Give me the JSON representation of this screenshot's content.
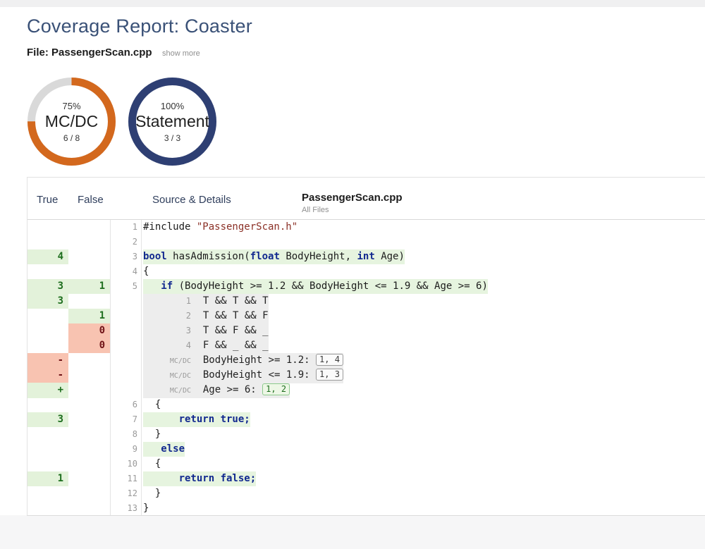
{
  "page": {
    "title": "Coverage Report: Coaster",
    "file_label": "File: PassengerScan.cpp",
    "show_more": "show more"
  },
  "metrics": [
    {
      "percent": 75,
      "percent_label": "75%",
      "name": "MC/DC",
      "fraction": "6 / 8",
      "color": "#d3681d",
      "track": "#d9d9d9"
    },
    {
      "percent": 100,
      "percent_label": "100%",
      "name": "Statement",
      "fraction": "3 / 3",
      "color": "#2e3f73",
      "track": "#d9d9d9"
    }
  ],
  "table": {
    "headers": {
      "true_col": "True",
      "false_col": "False",
      "source_col": "Source & Details",
      "file": "PassengerScan.cpp",
      "file_sub": "All Files"
    },
    "rows": [
      {
        "kind": "code",
        "line": "1",
        "segs": [
          {
            "t": "#include "
          },
          {
            "t": "\"PassengerScan.h\"",
            "c": "str"
          }
        ]
      },
      {
        "kind": "code",
        "line": "2",
        "segs": []
      },
      {
        "kind": "code",
        "line": "3",
        "t": {
          "v": "4",
          "bg": "good"
        },
        "hl": true,
        "segs": [
          {
            "t": "bool",
            "c": "kw"
          },
          {
            "t": " hasAdmission("
          },
          {
            "t": "float",
            "c": "kw"
          },
          {
            "t": " BodyHeight, "
          },
          {
            "t": "int",
            "c": "kw"
          },
          {
            "t": " Age)"
          }
        ]
      },
      {
        "kind": "code",
        "line": "4",
        "segs": [
          {
            "t": "{"
          }
        ]
      },
      {
        "kind": "code",
        "line": "5",
        "t": {
          "v": "3",
          "bg": "good"
        },
        "f": {
          "v": "1",
          "bg": "good"
        },
        "hl": true,
        "segs": [
          {
            "t": "   "
          },
          {
            "t": "if",
            "c": "kw"
          },
          {
            "t": " (BodyHeight >= 1.2 && BodyHeight <= 1.9 && Age >= 6)"
          }
        ]
      },
      {
        "kind": "combo",
        "t": {
          "v": "3",
          "bg": "good"
        },
        "idx": "1",
        "text": "T && T && T"
      },
      {
        "kind": "combo",
        "f": {
          "v": "1",
          "bg": "good"
        },
        "idx": "2",
        "text": "T && T && F"
      },
      {
        "kind": "combo",
        "f": {
          "v": "0",
          "bg": "bad"
        },
        "idx": "3",
        "text": "T && F && _"
      },
      {
        "kind": "combo",
        "f": {
          "v": "0",
          "bg": "bad"
        },
        "idx": "4",
        "text": "F && _ && _"
      },
      {
        "kind": "mcdc",
        "t": {
          "v": "-",
          "bg": "bad"
        },
        "label": "MC/DC",
        "cond": "BodyHeight >= 1.2:",
        "box": {
          "text": "1, 4",
          "style": "gray"
        }
      },
      {
        "kind": "mcdc",
        "t": {
          "v": "-",
          "bg": "bad"
        },
        "label": "MC/DC",
        "cond": "BodyHeight <= 1.9:",
        "box": {
          "text": "1, 3",
          "style": "gray"
        }
      },
      {
        "kind": "mcdc",
        "t": {
          "v": "+",
          "bg": "good"
        },
        "label": "MC/DC",
        "cond": "Age >= 6:",
        "box": {
          "text": "1, 2",
          "style": "green"
        }
      },
      {
        "kind": "code",
        "line": "6",
        "segs": [
          {
            "t": "  {"
          }
        ]
      },
      {
        "kind": "code",
        "line": "7",
        "t": {
          "v": "3",
          "bg": "good"
        },
        "hl": true,
        "segs": [
          {
            "t": "      "
          },
          {
            "t": "return true;",
            "c": "kw"
          }
        ]
      },
      {
        "kind": "code",
        "line": "8",
        "segs": [
          {
            "t": "  }"
          }
        ]
      },
      {
        "kind": "code",
        "line": "9",
        "hl": true,
        "segs": [
          {
            "t": "   "
          },
          {
            "t": "else",
            "c": "kw"
          }
        ]
      },
      {
        "kind": "code",
        "line": "10",
        "segs": [
          {
            "t": "  {"
          }
        ]
      },
      {
        "kind": "code",
        "line": "11",
        "t": {
          "v": "1",
          "bg": "good"
        },
        "hl": true,
        "segs": [
          {
            "t": "      "
          },
          {
            "t": "return false;",
            "c": "kw"
          }
        ]
      },
      {
        "kind": "code",
        "line": "12",
        "segs": [
          {
            "t": "  }"
          }
        ]
      },
      {
        "kind": "code",
        "line": "13",
        "segs": [
          {
            "t": "}"
          }
        ]
      }
    ]
  }
}
